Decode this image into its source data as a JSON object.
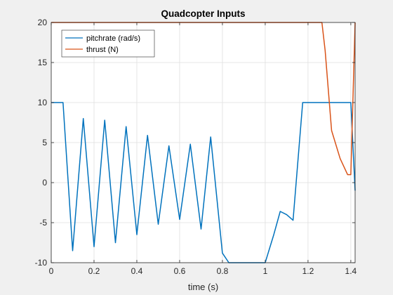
{
  "chart_data": {
    "type": "line",
    "title": "Quadcopter Inputs",
    "xlabel": "time (s)",
    "ylabel": "",
    "xlim": [
      0,
      1.42
    ],
    "ylim": [
      -10,
      20
    ],
    "xticks": [
      0,
      0.2,
      0.4,
      0.6,
      0.8,
      1,
      1.2,
      1.4
    ],
    "xtick_labels": [
      "0",
      "0.2",
      "0.4",
      "0.6",
      "0.8",
      "1",
      "1.2",
      "1.4"
    ],
    "yticks": [
      -10,
      -5,
      0,
      5,
      10,
      15,
      20
    ],
    "ytick_labels": [
      "-10",
      "-5",
      "0",
      "5",
      "10",
      "15",
      "20"
    ],
    "grid": true,
    "legend_position": "top-left",
    "series": [
      {
        "name": "pitchrate (rad/s)",
        "color": "#0072BD",
        "x": [
          0,
          0.055,
          0.1,
          0.15,
          0.2,
          0.25,
          0.3,
          0.35,
          0.4,
          0.45,
          0.5,
          0.55,
          0.6,
          0.65,
          0.7,
          0.745,
          0.8,
          0.83,
          0.9,
          1.0,
          1.04,
          1.07,
          1.1,
          1.13,
          1.175,
          1.2,
          1.25,
          1.3,
          1.35,
          1.4,
          1.42
        ],
        "y": [
          10,
          10,
          -8.5,
          8,
          -8,
          7.8,
          -7.5,
          7,
          -6.5,
          5.9,
          -5.2,
          4.6,
          -4.6,
          4.8,
          -5.8,
          5.7,
          -8.8,
          -10,
          -10,
          -10,
          -6.5,
          -3.6,
          -4,
          -4.7,
          10,
          10,
          10,
          10,
          10,
          10,
          -1
        ]
      },
      {
        "name": "thrust (N)",
        "color": "#D95319",
        "x": [
          0,
          0.1,
          0.2,
          0.4,
          0.6,
          0.8,
          1.0,
          1.1,
          1.2,
          1.265,
          1.28,
          1.31,
          1.35,
          1.385,
          1.4,
          1.42
        ],
        "y": [
          20,
          20,
          20,
          20,
          20,
          20,
          20,
          20,
          20,
          20,
          16.5,
          6.5,
          3,
          1,
          1,
          20
        ]
      }
    ]
  }
}
